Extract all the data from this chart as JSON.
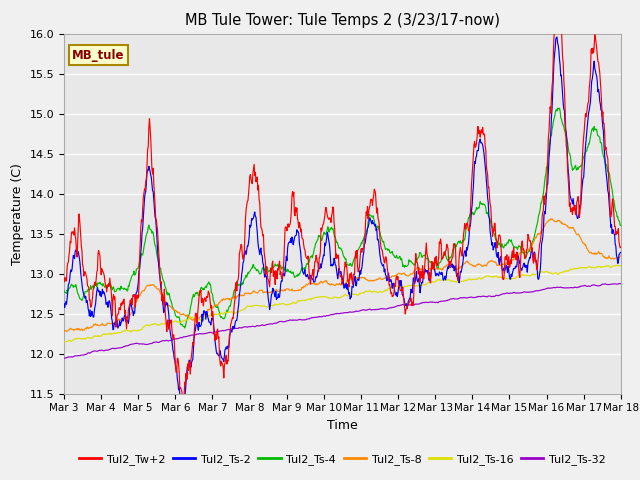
{
  "title": "MB Tule Tower: Tule Temps 2 (3/23/17-now)",
  "ylabel": "Temperature (C)",
  "xlabel": "Time",
  "ylim": [
    11.5,
    16.0
  ],
  "yticks": [
    11.5,
    12.0,
    12.5,
    13.0,
    13.5,
    14.0,
    14.5,
    15.0,
    15.5,
    16.0
  ],
  "xtick_labels": [
    "Mar 3",
    "Mar 4",
    "Mar 5",
    "Mar 6",
    "Mar 7",
    "Mar 8",
    "Mar 9",
    "Mar 10",
    "Mar 11",
    "Mar 12",
    "Mar 13",
    "Mar 14",
    "Mar 15",
    "Mar 16",
    "Mar 17",
    "Mar 18"
  ],
  "series_colors": {
    "Tul2_Tw+2": "#ff0000",
    "Tul2_Ts-2": "#0000ff",
    "Tul2_Ts-4": "#00bb00",
    "Tul2_Ts-8": "#ff8800",
    "Tul2_Ts-16": "#dddd00",
    "Tul2_Ts-32": "#9900cc"
  },
  "legend_label": "MB_tule",
  "legend_bg": "#ffffcc",
  "legend_border": "#aa8800",
  "plot_bg": "#e8e8e8",
  "grid_color": "#ffffff",
  "fig_bg": "#f0f0f0"
}
